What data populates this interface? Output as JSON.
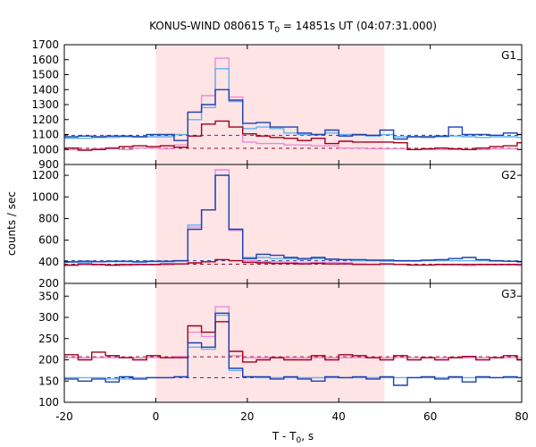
{
  "chart_data": {
    "type": "line",
    "title": "KONUS-WIND 080615 T",
    "title_sub": "0",
    "title_rest": " = 14851s UT (04:07:31.000)",
    "xlabel_main": "T - T",
    "xlabel_sub": "0",
    "xlabel_rest": ", s",
    "ylabel": "counts / sec",
    "xlim": [
      -20,
      80
    ],
    "x_ticks": [
      "-20",
      "0",
      "20",
      "40",
      "60",
      "80"
    ],
    "x_tick_values": [
      -20,
      0,
      20,
      40,
      60,
      80
    ],
    "shaded_interval": [
      0,
      50
    ],
    "colors": {
      "shade": "#ffe4e6",
      "dark_blue": "#1e3fb0",
      "light_blue": "#5fb3ef",
      "dark_red": "#a0001c",
      "pink": "#e98ad9"
    },
    "panels": [
      {
        "name": "G1",
        "ylim": [
          900,
          1700
        ],
        "y_ticks": [
          "900",
          "1000",
          "1100",
          "1200",
          "1300",
          "1400",
          "1500",
          "1600",
          "1700"
        ],
        "y_tick_values": [
          900,
          1000,
          1100,
          1200,
          1300,
          1400,
          1500,
          1600,
          1700
        ],
        "series": [
          {
            "color_key": "dark_blue",
            "step": 3,
            "x_start": -20,
            "values": [
              1085,
              1090,
              1085,
              1090,
              1090,
              1085,
              1100,
              1100,
              1060,
              1250,
              1300,
              1400,
              1330,
              1175,
              1180,
              1150,
              1150,
              1110,
              1100,
              1130,
              1090,
              1100,
              1095,
              1130,
              1070,
              1085,
              1085,
              1090,
              1150,
              1100,
              1100,
              1095,
              1110,
              1100
            ]
          },
          {
            "color_key": "light_blue",
            "step": 3,
            "x_start": -20,
            "values": [
              1075,
              1075,
              1080,
              1080,
              1085,
              1085,
              1085,
              1085,
              1100,
              1200,
              1280,
              1540,
              1320,
              1140,
              1150,
              1140,
              1110,
              1100,
              1100,
              1110,
              1100,
              1095,
              1090,
              1100,
              1085,
              1085,
              1080,
              1085,
              1090,
              1085,
              1080,
              1085,
              1085,
              1080
            ]
          },
          {
            "color_key": "dark_red",
            "step": 3,
            "x_start": -20,
            "values": [
              1010,
              995,
              1000,
              1010,
              1020,
              1025,
              1020,
              1025,
              1015,
              1090,
              1170,
              1190,
              1150,
              1105,
              1090,
              1080,
              1075,
              1060,
              1075,
              1040,
              1055,
              1050,
              1050,
              1050,
              1045,
              1000,
              1005,
              1010,
              1005,
              1000,
              1010,
              1020,
              1025,
              1045
            ]
          },
          {
            "color_key": "pink",
            "step": 3,
            "x_start": -20,
            "values": [
              1000,
              1000,
              1005,
              1005,
              1000,
              1010,
              1010,
              1005,
              1030,
              1250,
              1360,
              1610,
              1350,
              1050,
              1040,
              1040,
              1030,
              1030,
              1025,
              1025,
              1010,
              1010,
              1005,
              1005,
              1005,
              1000,
              1000,
              1000,
              1000,
              1000,
              1000,
              1005,
              1005,
              1000
            ]
          }
        ],
        "dashed": [
          {
            "color_key": "dark_blue",
            "value": 1095
          },
          {
            "color_key": "dark_red",
            "value": 1008
          }
        ]
      },
      {
        "name": "G2",
        "ylim": [
          200,
          1300
        ],
        "y_ticks": [
          "200",
          "400",
          "600",
          "800",
          "1000",
          "1200"
        ],
        "y_tick_values": [
          200,
          400,
          600,
          800,
          1000,
          1200
        ],
        "series": [
          {
            "color_key": "dark_blue",
            "step": 3,
            "x_start": -20,
            "values": [
              400,
              405,
              400,
              405,
              405,
              400,
              405,
              405,
              410,
              700,
              880,
              1200,
              700,
              430,
              470,
              460,
              440,
              430,
              440,
              425,
              420,
              420,
              415,
              415,
              410,
              410,
              415,
              420,
              430,
              440,
              420,
              410,
              405,
              400
            ]
          },
          {
            "color_key": "light_blue",
            "step": 3,
            "x_start": -20,
            "values": [
              395,
              395,
              400,
              400,
              400,
              395,
              400,
              400,
              405,
              740,
              880,
              1200,
              700,
              440,
              440,
              430,
              430,
              420,
              430,
              420,
              420,
              410,
              410,
              405,
              405,
              405,
              410,
              410,
              410,
              410,
              410,
              405,
              405,
              405
            ]
          },
          {
            "color_key": "dark_red",
            "step": 3,
            "x_start": -20,
            "values": [
              370,
              380,
              375,
              370,
              375,
              375,
              375,
              380,
              380,
              390,
              400,
              420,
              410,
              395,
              390,
              385,
              385,
              380,
              385,
              380,
              380,
              375,
              375,
              380,
              375,
              370,
              370,
              375,
              375,
              375,
              375,
              375,
              375,
              375
            ]
          },
          {
            "color_key": "pink",
            "step": 3,
            "x_start": -20,
            "values": [
              365,
              370,
              370,
              365,
              365,
              370,
              370,
              370,
              380,
              720,
              880,
              1250,
              690,
              410,
              400,
              400,
              395,
              390,
              395,
              395,
              390,
              380,
              375,
              375,
              375,
              370,
              370,
              370,
              370,
              365,
              370,
              370,
              370,
              365
            ]
          }
        ],
        "dashed": [
          {
            "color_key": "dark_blue",
            "value": 410
          },
          {
            "color_key": "dark_red",
            "value": 378
          }
        ]
      },
      {
        "name": "G3",
        "ylim": [
          100,
          380
        ],
        "y_ticks": [
          "100",
          "150",
          "200",
          "250",
          "300",
          "350"
        ],
        "y_tick_values": [
          100,
          150,
          200,
          250,
          300,
          350
        ],
        "series": [
          {
            "color_key": "dark_blue",
            "step": 3,
            "x_start": -20,
            "values": [
              155,
              150,
              155,
              148,
              160,
              155,
              158,
              158,
              160,
              240,
              230,
              310,
              180,
              160,
              160,
              155,
              160,
              155,
              150,
              160,
              158,
              160,
              155,
              160,
              140,
              158,
              160,
              155,
              160,
              148,
              160,
              158,
              160,
              158
            ]
          },
          {
            "color_key": "light_blue",
            "step": 3,
            "x_start": -20,
            "values": [
              158,
              158,
              158,
              155,
              155,
              158,
              158,
              158,
              160,
              230,
              225,
              305,
              175,
              160,
              158,
              158,
              158,
              158,
              158,
              158,
              158,
              158,
              158,
              158,
              158,
              158,
              158,
              158,
              158,
              158,
              158,
              158,
              158,
              158
            ]
          },
          {
            "color_key": "dark_red",
            "step": 3,
            "x_start": -20,
            "values": [
              212,
              200,
              218,
              210,
              205,
              200,
              210,
              205,
              205,
              280,
              265,
              290,
              220,
              195,
              200,
              205,
              200,
              200,
              210,
              200,
              212,
              210,
              205,
              200,
              210,
              200,
              205,
              200,
              205,
              208,
              200,
              205,
              210,
              200
            ]
          },
          {
            "color_key": "pink",
            "step": 3,
            "x_start": -20,
            "values": [
              205,
              205,
              205,
              205,
              205,
              205,
              205,
              205,
              208,
              265,
              255,
              325,
              210,
              205,
              205,
              205,
              205,
              205,
              205,
              205,
              205,
              205,
              205,
              205,
              205,
              205,
              205,
              205,
              205,
              205,
              205,
              205,
              205,
              205
            ]
          }
        ],
        "dashed": [
          {
            "color_key": "dark_blue",
            "value": 158
          },
          {
            "color_key": "dark_red",
            "value": 207
          }
        ]
      }
    ]
  }
}
